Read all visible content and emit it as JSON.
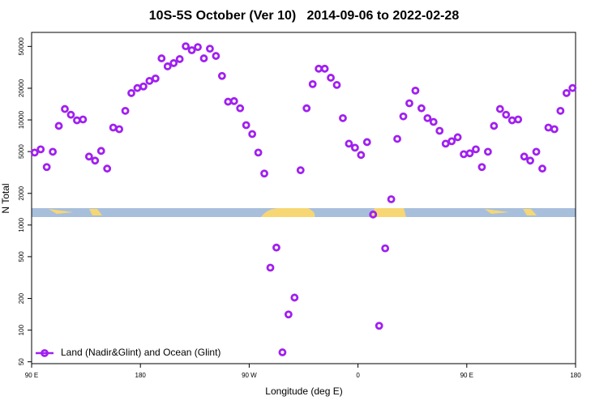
{
  "chart_data": {
    "type": "scatter",
    "title": "10S-5S October (Ver 10)   2014-09-06 to 2022-02-28",
    "xlabel": "Longitude (deg E)",
    "ylabel": "N Total",
    "yscale": "log",
    "legend": "lower left",
    "xlim": [
      90,
      540
    ],
    "ylim": [
      48,
      68000
    ],
    "xticks": [
      {
        "value": 90,
        "label": "90 E"
      },
      180,
      {
        "value": 270,
        "label": "90 W"
      },
      {
        "value": 360,
        "label": "0"
      },
      {
        "value": 450,
        "label": "90 E"
      },
      {
        "value": 540,
        "label": "180"
      }
    ],
    "yticks": [
      50,
      100,
      200,
      500,
      1000,
      2000,
      5000,
      10000,
      20000,
      50000
    ],
    "series": [
      {
        "name": "Land (Nadir&Glint) and Ocean (Glint)",
        "color": "#a020f0",
        "x": [
          92.5,
          97.5,
          102.5,
          107.5,
          112.5,
          117.5,
          122.5,
          127.5,
          132.5,
          137.5,
          142.5,
          147.5,
          152.5,
          157.5,
          162.5,
          167.5,
          172.5,
          177.5,
          182.5,
          187.5,
          192.5,
          197.5,
          202.5,
          207.5,
          212.5,
          217.5,
          222.5,
          227.5,
          232.5,
          237.5,
          242.5,
          247.5,
          252.5,
          257.5,
          262.5,
          267.5,
          272.5,
          277.5,
          282.5,
          287.5,
          292.5,
          297.5,
          302.5,
          307.5,
          312.5,
          317.5,
          322.5,
          327.5,
          332.5,
          337.5,
          342.5,
          347.5,
          352.5,
          357.5,
          362.5,
          367.5,
          372.5,
          377.5,
          382.5,
          387.5,
          392.5,
          397.5,
          402.5,
          407.5,
          412.5,
          417.5,
          422.5,
          427.5,
          432.5,
          437.5,
          442.5,
          447.5,
          452.5,
          457.5,
          462.5,
          467.5,
          472.5,
          477.5,
          482.5,
          487.5,
          492.5,
          497.5,
          502.5,
          507.5,
          512.5,
          517.5,
          522.5,
          527.5,
          532.5,
          537.5
        ],
        "values": [
          4890,
          5250,
          3560,
          4980,
          8770,
          12700,
          11200,
          9910,
          10100,
          4480,
          4100,
          5070,
          3440,
          8460,
          8160,
          12200,
          18000,
          20100,
          20800,
          23500,
          24800,
          38500,
          32300,
          34700,
          37900,
          50200,
          46000,
          49300,
          38500,
          47600,
          40600,
          26200,
          14900,
          15100,
          12900,
          8920,
          7340,
          4890,
          3090,
          393,
          610,
          61.5,
          141,
          204,
          3320,
          12900,
          21900,
          30700,
          30700,
          25200,
          21500,
          10400,
          5940,
          5440,
          4640,
          6150,
          1260,
          110,
          600,
          1760,
          6600,
          10800,
          14400,
          19000,
          12900,
          10400,
          9570,
          7880,
          5940,
          6270,
          6840,
          4720,
          4810,
          5250,
          3560,
          4980,
          8770,
          12700,
          11200,
          9910,
          10100,
          4480,
          4100,
          4980,
          3440,
          8460,
          8160,
          12200,
          18000,
          20100
        ]
      }
    ]
  }
}
